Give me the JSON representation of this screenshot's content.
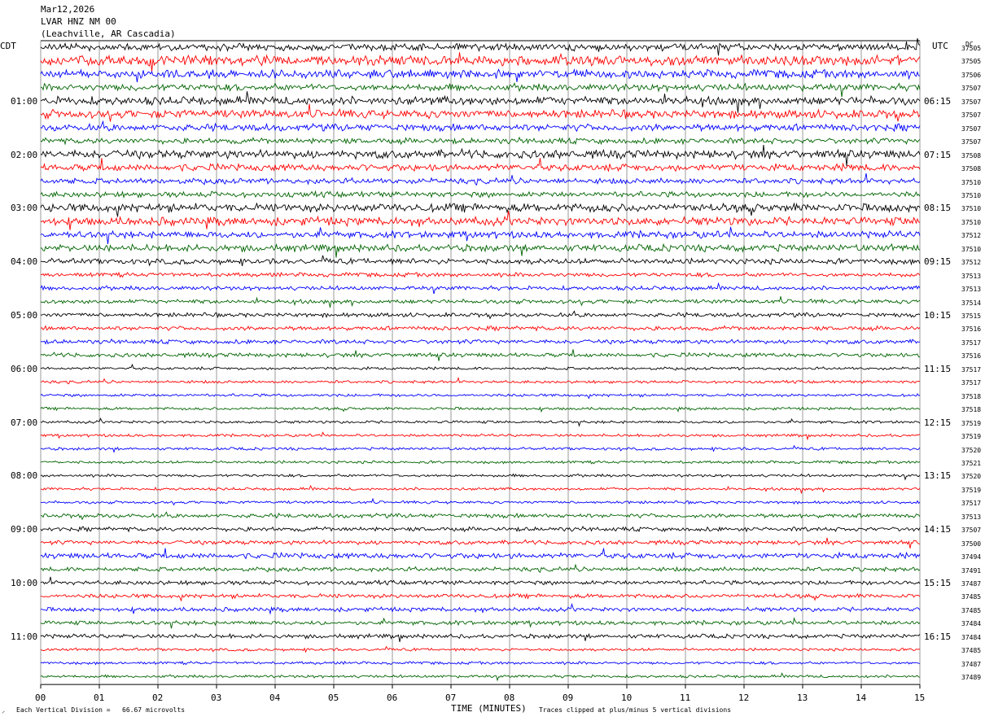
{
  "header": {
    "date": "Mar12,2026",
    "station": "LVAR HNZ NM 00",
    "location": "(Leachville, AR Cascadia)"
  },
  "left_axis_title": "CDT",
  "right_axis_title": "UTC",
  "dc_title": "DC",
  "x_axis_title": "TIME (MINUTES)",
  "footnote_left": "Each Vertical Division =   66.67 microvolts",
  "footnote_right": "Traces clipped at plus/minus 5 vertical divisions",
  "colors": {
    "trace_cycle": [
      "#000000",
      "#ff0000",
      "#0000ff",
      "#006400"
    ],
    "grid": "#808080"
  },
  "chart_data": {
    "type": "line",
    "description_kind": "helicorder",
    "xlabel": "TIME (MINUTES)",
    "xlim": [
      0,
      15
    ],
    "x_ticks": [
      "00",
      "01",
      "02",
      "03",
      "04",
      "05",
      "06",
      "07",
      "08",
      "09",
      "10",
      "11",
      "12",
      "13",
      "14",
      "15"
    ],
    "rows_per_hour": 4,
    "row_count": 48,
    "left_hour_labels": [
      "01:00",
      "02:00",
      "03:00",
      "04:00",
      "05:00",
      "06:00",
      "07:00",
      "08:00",
      "09:00",
      "10:00",
      "11:00"
    ],
    "right_hour_labels": [
      "06:15",
      "07:15",
      "08:15",
      "09:15",
      "10:15",
      "11:15",
      "12:15",
      "13:15",
      "14:15",
      "15:15",
      "16:15"
    ],
    "dc_offsets": [
      "37505",
      "37505",
      "37506",
      "37507",
      "37507",
      "37507",
      "37507",
      "37507",
      "37508",
      "37508",
      "37510",
      "37510",
      "37510",
      "37510",
      "37512",
      "37510",
      "37512",
      "37513",
      "37513",
      "37514",
      "37515",
      "37516",
      "37517",
      "37516",
      "37517",
      "37517",
      "37518",
      "37518",
      "37519",
      "37519",
      "37520",
      "37521",
      "37520",
      "37519",
      "37517",
      "37513",
      "37507",
      "37500",
      "37494",
      "37491",
      "37487",
      "37485",
      "37485",
      "37484",
      "37484",
      "37485",
      "37487",
      "37489"
    ],
    "trace_activity": [
      5,
      7,
      6,
      5,
      6,
      6,
      5,
      4,
      6,
      5,
      4,
      4,
      6,
      6,
      5,
      5,
      4,
      3,
      3,
      3,
      3,
      3,
      3,
      3,
      2,
      2,
      2,
      2,
      2,
      2,
      2,
      2,
      2,
      2,
      2,
      3,
      3,
      3,
      4,
      3,
      3,
      3,
      3,
      3,
      3,
      2,
      2,
      2
    ]
  }
}
